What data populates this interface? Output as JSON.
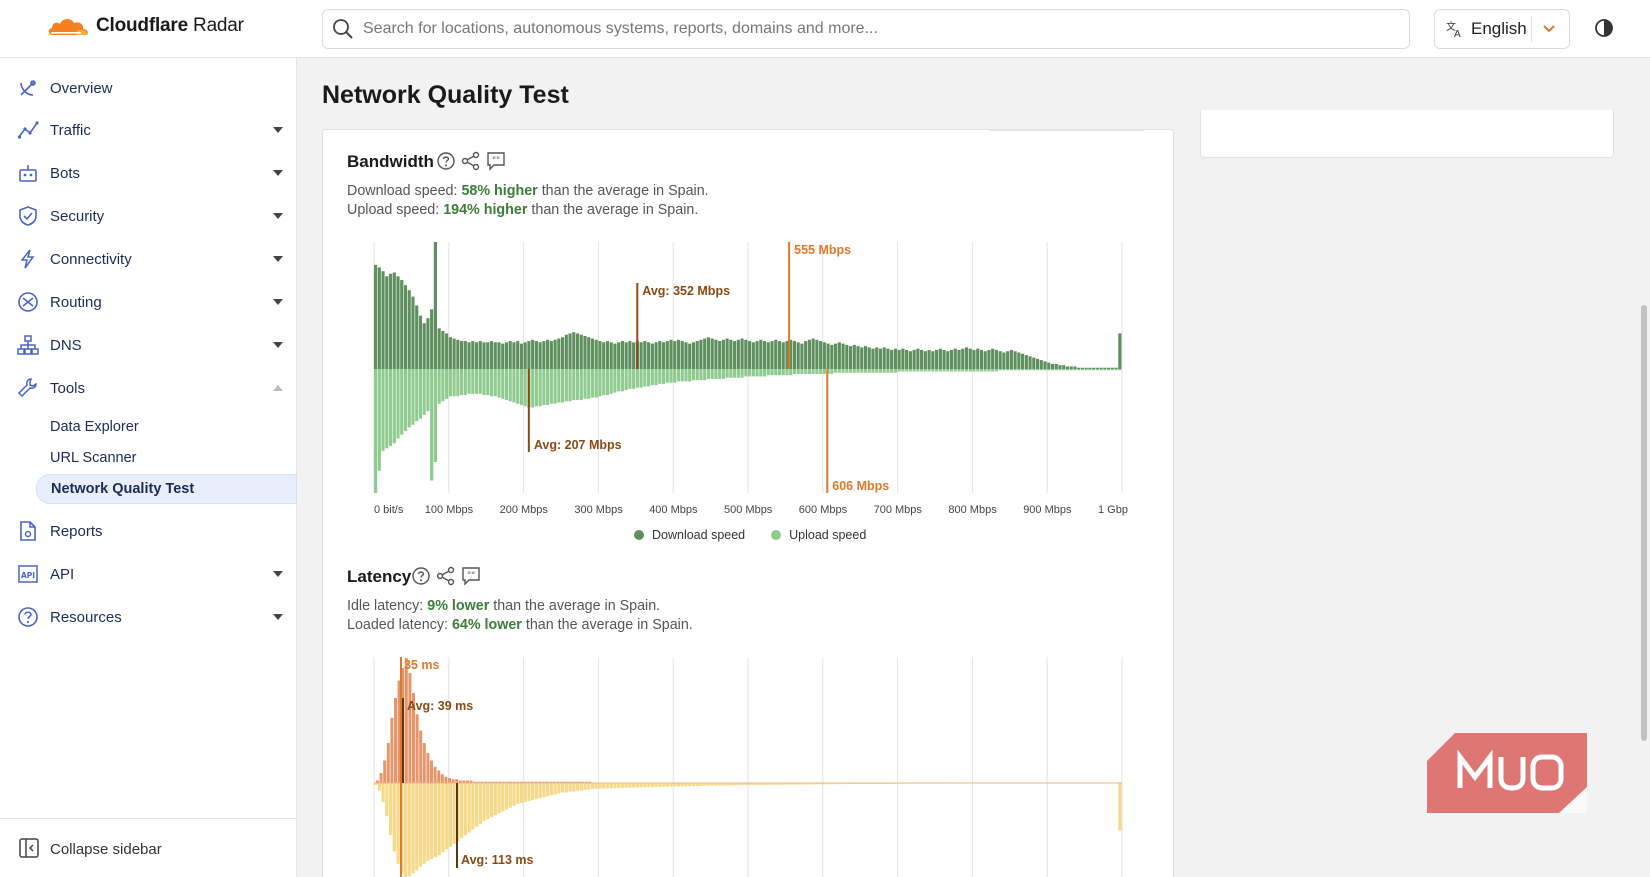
{
  "header": {
    "logo_bold": "Cloudflare",
    "logo_light": "Radar",
    "search_placeholder": "Search for locations, autonomous systems, reports, domains and more...",
    "language": "English"
  },
  "sidebar": {
    "items": [
      {
        "label": "Overview",
        "icon": "satellite-dish-icon"
      },
      {
        "label": "Traffic",
        "icon": "traffic-trend-icon"
      },
      {
        "label": "Bots",
        "icon": "bot-icon"
      },
      {
        "label": "Security",
        "icon": "shield-icon"
      },
      {
        "label": "Connectivity",
        "icon": "lightning-icon"
      },
      {
        "label": "Routing",
        "icon": "routing-icon"
      },
      {
        "label": "DNS",
        "icon": "dns-network-icon"
      },
      {
        "label": "Tools",
        "icon": "wrench-icon"
      }
    ],
    "tools_sub": [
      "Data Explorer",
      "URL Scanner",
      "Network Quality Test"
    ],
    "items_after": [
      {
        "label": "Reports",
        "icon": "report-icon"
      },
      {
        "label": "API",
        "icon": "api-icon"
      },
      {
        "label": "Resources",
        "icon": "help-circle-icon"
      }
    ],
    "collapse_label": "Collapse sidebar"
  },
  "page": {
    "title": "Network Quality Test"
  },
  "bandwidth": {
    "title": "Bandwidth",
    "download_prefix": "Download speed: ",
    "download_highlight": "58% higher",
    "download_suffix": " than the average in Spain.",
    "upload_prefix": "Upload speed: ",
    "upload_highlight": "194% higher",
    "upload_suffix": " than the average in Spain."
  },
  "latency": {
    "title": "Latency",
    "idle_prefix": "Idle latency: ",
    "idle_highlight": "9% lower",
    "idle_suffix": " than the average in Spain.",
    "loaded_prefix": "Loaded latency: ",
    "loaded_highlight": "64% lower",
    "loaded_suffix": " than the average in Spain."
  },
  "colors": {
    "download": "#5e8f5e",
    "upload": "#8fcb8f",
    "latency_idle": "#e8956a",
    "latency_loaded": "#f7d98a",
    "avg_marker": "#8a4a14",
    "user_marker": "#e0782a",
    "highlight_green": "#3b7d3b"
  },
  "chart_data": [
    {
      "type": "bar",
      "name_ref": "bandwidth",
      "x_ticks": [
        "0 bit/s",
        "100 Mbps",
        "200 Mbps",
        "300 Mbps",
        "400 Mbps",
        "500 Mbps",
        "600 Mbps",
        "700 Mbps",
        "800 Mbps",
        "900 Mbps",
        "1 Gbp"
      ],
      "xlim_mbps": [
        0,
        1000
      ],
      "series": [
        {
          "name": "Download speed",
          "direction": "up",
          "values": [
            82,
            80,
            77,
            73,
            75,
            76,
            73,
            70,
            66,
            62,
            57,
            50,
            42,
            36,
            40,
            47,
            100,
            32,
            30,
            28,
            25,
            24,
            23,
            22,
            22,
            21,
            22,
            21,
            22,
            21,
            21,
            22,
            21,
            21,
            20,
            21,
            22,
            21,
            22,
            20,
            21,
            22,
            23,
            22,
            21,
            22,
            23,
            22,
            23,
            24,
            25,
            27,
            28,
            29,
            28,
            27,
            26,
            25,
            24,
            23,
            22,
            21,
            22,
            21,
            20,
            21,
            22,
            21,
            22,
            21,
            22,
            21,
            22,
            21,
            20,
            21,
            22,
            21,
            22,
            23,
            22,
            23,
            22,
            21,
            20,
            21,
            22,
            23,
            24,
            25,
            24,
            23,
            22,
            23,
            24,
            23,
            22,
            23,
            24,
            23,
            22,
            21,
            22,
            23,
            22,
            21,
            22,
            23,
            22,
            21,
            22,
            23,
            22,
            21,
            20,
            22,
            23,
            24,
            23,
            22,
            21,
            20,
            19,
            20,
            21,
            20,
            19,
            18,
            19,
            18,
            17,
            18,
            17,
            16,
            17,
            16,
            17,
            16,
            15,
            16,
            15,
            16,
            15,
            14,
            15,
            16,
            15,
            14,
            15,
            14,
            15,
            16,
            15,
            14,
            15,
            16,
            15,
            16,
            17,
            16,
            15,
            16,
            15,
            14,
            15,
            16,
            15,
            14,
            13,
            14,
            15,
            14,
            13,
            12,
            11,
            10,
            9,
            8,
            7,
            6,
            5,
            4,
            4,
            3,
            3,
            2,
            2,
            2,
            1,
            1,
            1,
            1,
            1,
            1,
            1,
            1,
            1,
            1,
            1,
            28
          ]
        },
        {
          "name": "Upload speed",
          "direction": "down",
          "values": [
            100,
            82,
            66,
            64,
            62,
            60,
            56,
            53,
            50,
            47,
            45,
            42,
            40,
            37,
            34,
            90,
            75,
            28,
            26,
            24,
            22,
            22,
            22,
            21,
            21,
            20,
            20,
            20,
            20,
            21,
            21,
            22,
            22,
            23,
            24,
            25,
            26,
            27,
            28,
            29,
            30,
            31,
            31,
            30,
            30,
            29,
            29,
            28,
            28,
            27,
            27,
            26,
            26,
            25,
            25,
            25,
            24,
            24,
            23,
            23,
            22,
            21,
            21,
            20,
            19,
            18,
            18,
            17,
            16,
            16,
            15,
            15,
            14,
            14,
            13,
            13,
            12,
            12,
            11,
            11,
            11,
            10,
            10,
            10,
            10,
            9,
            9,
            9,
            9,
            8,
            8,
            8,
            8,
            8,
            7,
            7,
            7,
            7,
            7,
            6,
            6,
            6,
            6,
            6,
            6,
            5,
            5,
            5,
            5,
            5,
            5,
            5,
            4,
            4,
            4,
            4,
            4,
            4,
            4,
            4,
            4,
            4,
            4,
            3,
            3,
            3,
            3,
            3,
            3,
            3,
            3,
            3,
            3,
            3,
            3,
            3,
            3,
            3,
            3,
            3,
            2,
            2,
            2,
            2,
            2,
            2,
            2,
            2,
            2,
            2,
            2,
            2,
            2,
            2,
            2,
            2,
            2,
            2,
            2,
            2,
            2,
            2,
            2,
            2,
            2,
            2,
            2,
            1,
            1,
            1,
            1,
            1,
            1,
            1,
            1,
            1,
            1,
            1,
            1,
            1,
            1,
            1,
            1,
            1,
            1,
            1,
            1,
            1,
            1,
            1,
            1,
            1,
            1,
            1,
            1,
            1,
            1,
            1,
            1,
            1
          ]
        }
      ],
      "markers": [
        {
          "label": "Avg: 352 Mbps",
          "value": 352,
          "series": "Download speed",
          "kind": "avg"
        },
        {
          "label": "555 Mbps",
          "value": 555,
          "series": "Download speed",
          "kind": "user"
        },
        {
          "label": "Avg: 207 Mbps",
          "value": 207,
          "series": "Upload speed",
          "kind": "avg"
        },
        {
          "label": "606 Mbps",
          "value": 606,
          "series": "Upload speed",
          "kind": "user"
        }
      ],
      "legend": [
        {
          "name": "Download speed"
        },
        {
          "name": "Upload speed"
        }
      ],
      "legend_position": "bottom"
    },
    {
      "type": "bar",
      "name_ref": "latency",
      "series": [
        {
          "name": "Idle latency",
          "direction": "up",
          "values": [
            2,
            8,
            18,
            32,
            52,
            68,
            82,
            92,
            100,
            88,
            72,
            55,
            42,
            32,
            24,
            18,
            13,
            10,
            7,
            5,
            4,
            3,
            3,
            2,
            2,
            2,
            2,
            1,
            1,
            1,
            1,
            1,
            1,
            1,
            1,
            1,
            1,
            1,
            1,
            1,
            1,
            1,
            1,
            1,
            1,
            1,
            1,
            1,
            1,
            1,
            1,
            1,
            1,
            1,
            1,
            1,
            1,
            1,
            1,
            1
          ]
        },
        {
          "name": "Loaded latency",
          "direction": "down",
          "values": [
            2,
            8,
            20,
            35,
            55,
            72,
            85,
            95,
            100,
            98,
            95,
            92,
            88,
            85,
            82,
            80,
            78,
            76,
            73,
            70,
            67,
            64,
            61,
            58,
            55,
            52,
            49,
            46,
            43,
            40,
            38,
            36,
            34,
            32,
            30,
            28,
            26,
            24,
            22,
            21,
            20,
            19,
            18,
            17,
            16,
            15,
            14,
            13,
            12,
            11,
            10,
            10,
            9,
            9,
            8,
            8,
            7,
            7,
            6,
            6
          ]
        }
      ],
      "markers": [
        {
          "label": "35 ms",
          "series": "Idle latency",
          "kind": "user"
        },
        {
          "label": "Avg: 39 ms",
          "series": "Idle latency",
          "kind": "avg"
        },
        {
          "label": "Avg: 113 ms",
          "series": "Loaded latency",
          "kind": "avg"
        }
      ]
    }
  ]
}
